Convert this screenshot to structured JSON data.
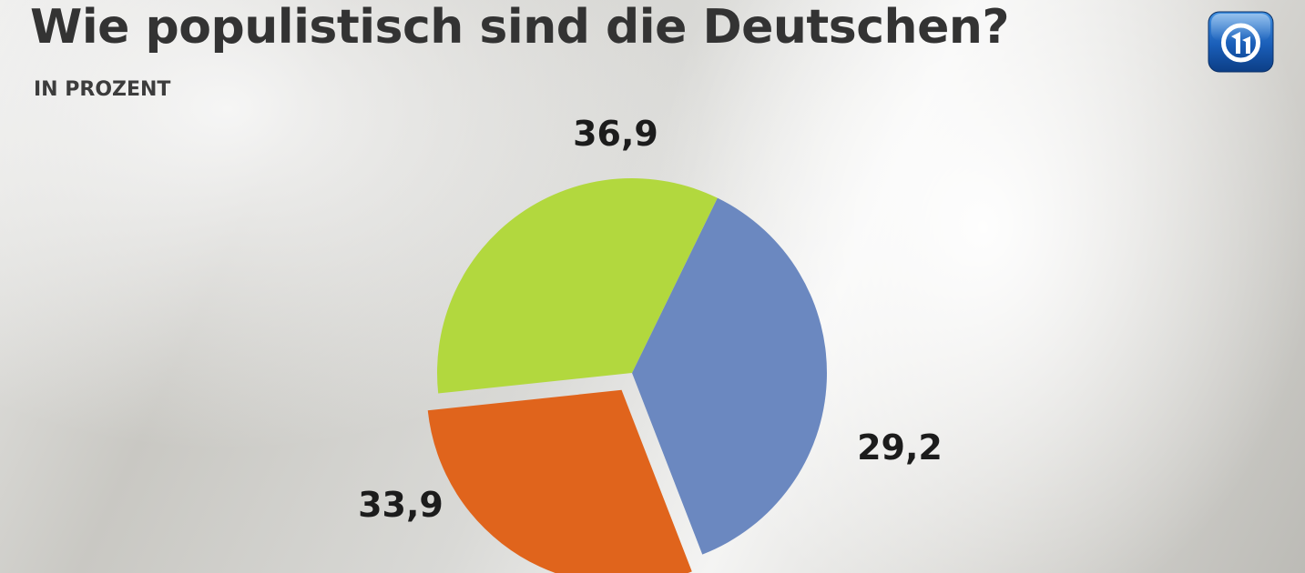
{
  "chart_data": {
    "type": "pie",
    "title": "Wie populistisch sind die Deutschen?",
    "subtitle": "IN PROZENT",
    "unit": "%",
    "decimal_separator": ",",
    "exploded_slice": 1,
    "slices": [
      {
        "value": 36.9,
        "label": "36,9",
        "color": "#6b88c0"
      },
      {
        "value": 29.2,
        "label": "29,2",
        "color": "#e0641c"
      },
      {
        "value": 33.9,
        "label": "33,9",
        "color": "#b2d83e"
      }
    ]
  },
  "header": {
    "logo_icon": "ard-logo-icon"
  }
}
